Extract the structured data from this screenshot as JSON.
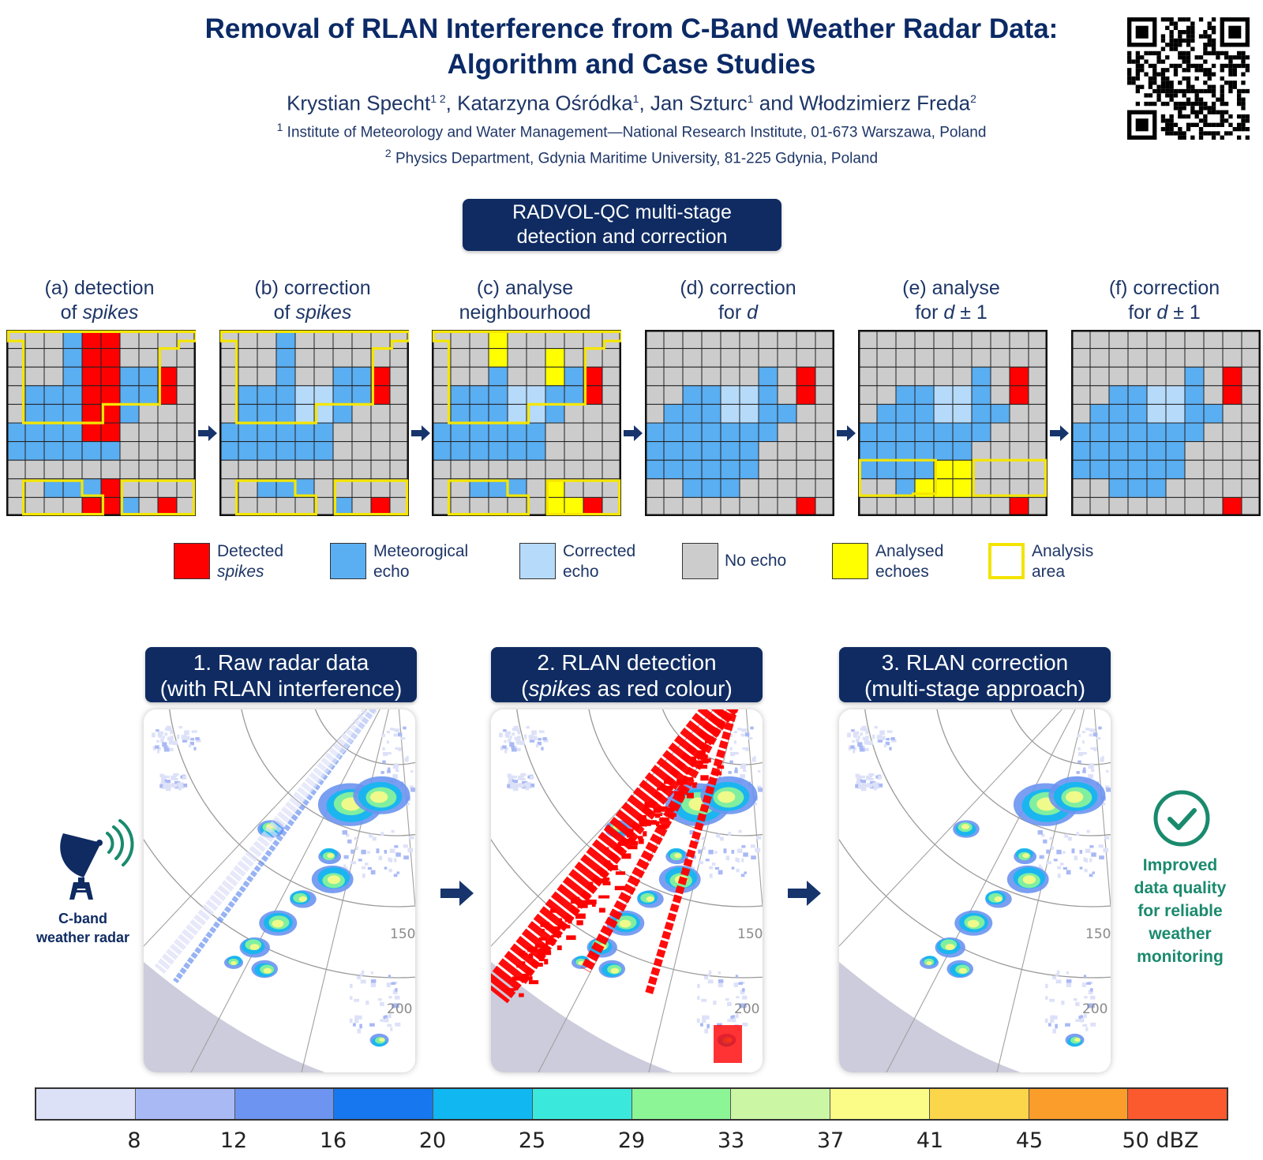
{
  "header": {
    "title_line1": "Removal of RLAN Interference from C-Band Weather Radar Data:",
    "title_line2": "Algorithm and Case Studies",
    "authors": [
      {
        "name": "Krystian Specht",
        "sup": "1 2"
      },
      {
        "name": "Katarzyna Ośródka",
        "sup": "1"
      },
      {
        "name": "Jan Szturc",
        "sup": "1"
      },
      {
        "name": "Włodzimierz Freda",
        "sup": "2"
      }
    ],
    "author_sep": ", ",
    "author_and": " and ",
    "affiliation1_sup": "1",
    "affiliation1": " Institute of Meteorology and Water Management—National Research Institute, 01-673 Warszawa, Poland",
    "affiliation2_sup": "2",
    "affiliation2": " Physics Department, Gdynia Maritime University, 81-225 Gdynia, Poland"
  },
  "stage_box": {
    "line1": "RADVOL-QC multi-stage",
    "line2": "detection and correction"
  },
  "steps": [
    {
      "line1": "(a) detection",
      "line2_pre": "of ",
      "line2_it": "spikes",
      "line2_post": ""
    },
    {
      "line1": "(b) correction",
      "line2_pre": "of ",
      "line2_it": "spikes",
      "line2_post": ""
    },
    {
      "line1": "(c) analyse",
      "line2_pre": "neighbourhood",
      "line2_it": "",
      "line2_post": ""
    },
    {
      "line1": "(d) correction",
      "line2_pre": "for ",
      "line2_it": "d",
      "line2_post": ""
    },
    {
      "line1": "(e) analyse",
      "line2_pre": "for ",
      "line2_it": "d",
      "line2_post": " ± 1"
    },
    {
      "line1": "(f) correction",
      "line2_pre": "for ",
      "line2_it": "d",
      "line2_post": " ± 1"
    }
  ],
  "legend": [
    {
      "line1": "Detected",
      "line2": "spikes",
      "line2_italic": true,
      "color": "#ff0000",
      "outline": false
    },
    {
      "line1": "Meteorogical",
      "line2": "echo",
      "line2_italic": false,
      "color": "#5aaef2",
      "outline": false
    },
    {
      "line1": "Corrected",
      "line2": "echo",
      "line2_italic": false,
      "color": "#b6dafa",
      "outline": false
    },
    {
      "line1": "No echo",
      "line2": "",
      "line2_italic": false,
      "color": "#cccccc",
      "outline": false
    },
    {
      "line1": "Analysed",
      "line2": "echoes",
      "line2_italic": false,
      "color": "#ffff00",
      "outline": false
    },
    {
      "line1": "Analysis",
      "line2": "area",
      "line2_italic": false,
      "color": "#ffffff",
      "outline": true,
      "outline_color": "#f2e400"
    }
  ],
  "panels": [
    {
      "title_line1": "1. Raw radar data",
      "title_line2_pre": "(with RLAN interference)",
      "title_line2_it": "",
      "title_line2_post": "",
      "range_labels": [
        "150",
        "200"
      ]
    },
    {
      "title_line1": "2. RLAN detection",
      "title_line2_pre": "(",
      "title_line2_it": "spikes",
      "title_line2_post": " as red colour)",
      "range_labels": [
        "150",
        "200"
      ]
    },
    {
      "title_line1": "3. RLAN correction",
      "title_line2_pre": "(multi-stage approach)",
      "title_line2_it": "",
      "title_line2_post": "",
      "range_labels": [
        "150",
        "200"
      ]
    }
  ],
  "radar_icon_label": {
    "line1": "C-band",
    "line2": "weather radar"
  },
  "improved": {
    "line1": "Improved",
    "line2": "data quality",
    "line3": "for reliable",
    "line4": "weather",
    "line5": "monitoring"
  },
  "colorbar": {
    "colors": [
      "#dde1f8",
      "#a9b9f4",
      "#6c94f0",
      "#1777ee",
      "#11b7f0",
      "#3be9dc",
      "#8cf596",
      "#cbf7a5",
      "#fbfb87",
      "#fbd54a",
      "#fb9d2a",
      "#fb5a2e"
    ],
    "ticks": [
      "8",
      "12",
      "16",
      "20",
      "25",
      "29",
      "33",
      "37",
      "41",
      "45",
      "50 dBZ"
    ]
  },
  "grid_colors": {
    "none": "#cccccc",
    "met": "#5aaef2",
    "corr": "#b6dafa",
    "spike": "#ff0000",
    "anal": "#ffff00",
    "area": "#f5e600"
  }
}
